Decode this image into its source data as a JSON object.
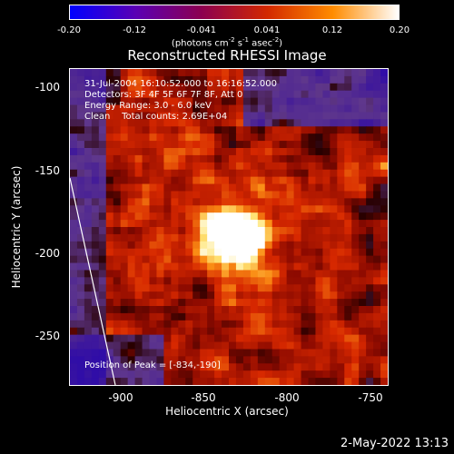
{
  "colorbar": {
    "ticks": [
      "-0.20",
      "-0.12",
      "-0.041",
      "0.041",
      "0.12",
      "0.20"
    ],
    "units_text": "(photons cm",
    "units_sup1": "-2",
    "units_mid": " s",
    "units_sup2": "-1",
    "units_mid2": " asec",
    "units_sup3": "-2",
    "units_end": ")",
    "colors": [
      "#0000ff",
      "#5a00b4",
      "#8c0050",
      "#d22800",
      "#ff8c00",
      "#ffffff"
    ]
  },
  "title": "Reconstructed RHESSI Image",
  "annotations": {
    "line1": "31-Jul-2004 16:10:52.000 to 16:16:52.000",
    "line2": "Detectors: 3F 4F 5F 6F 7F 8F, Att 0",
    "line3": "Energy Range: 3.0 - 6.0 keV",
    "line4": "Clean    Total counts: 2.69E+04",
    "peak": "Position of Peak = [-834,-190]"
  },
  "axes": {
    "xlabel": "Heliocentric X (arcsec)",
    "ylabel": "Heliocentric Y (arcsec)",
    "xticks": [
      "-900",
      "-850",
      "-800",
      "-750"
    ],
    "yticks": [
      "-100",
      "-150",
      "-200",
      "-250"
    ],
    "xlim": [
      -935,
      -738
    ],
    "ylim": [
      -283,
      -87
    ]
  },
  "timestamp": "2-May-2022 13:13"
}
